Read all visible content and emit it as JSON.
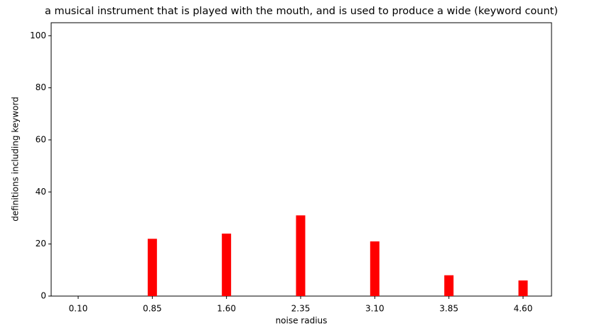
{
  "chart_data": {
    "type": "bar",
    "title": "a musical instrument that is played with the mouth, and is used to produce a wide (keyword count)",
    "x_label": "noise radius",
    "y_label": "definitions including keyword",
    "categories": [
      "0.10",
      "0.85",
      "1.60",
      "2.35",
      "3.10",
      "3.85",
      "4.60"
    ],
    "values": [
      0,
      22,
      24,
      31,
      21,
      8,
      6
    ],
    "color": "#ff0000",
    "ylim": [
      0,
      105
    ],
    "yticks": [
      0,
      20,
      40,
      60,
      80,
      100
    ],
    "grid": false
  }
}
